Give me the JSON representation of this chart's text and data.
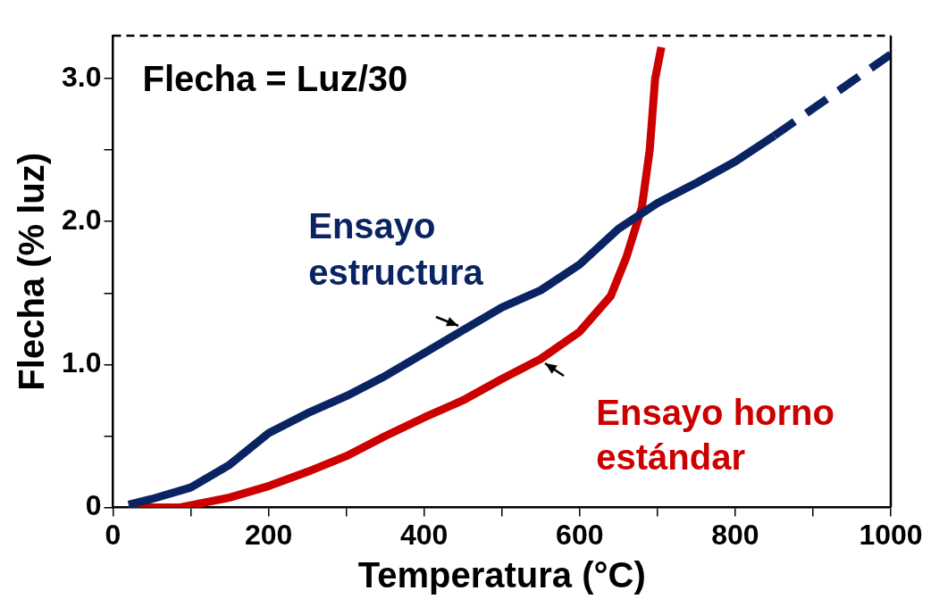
{
  "chart_data": {
    "type": "line",
    "xlabel": "Temperatura (°C)",
    "ylabel": "Flecha (% luz)",
    "xlim": [
      0,
      1000
    ],
    "xticks": [
      0,
      {
        "value": 100,
        "label": null
      },
      200,
      {
        "value": 300,
        "label": null
      },
      400,
      {
        "value": 500,
        "label": null
      },
      600,
      {
        "value": 700,
        "label": null
      },
      800,
      {
        "value": 900,
        "label": null
      },
      1000
    ],
    "ylim": [
      0,
      3.3
    ],
    "yticks": [
      0,
      {
        "value": 0.5,
        "label": null
      },
      {
        "value": 1,
        "label": "1.0"
      },
      {
        "value": 1.5,
        "label": null
      },
      {
        "value": 2,
        "label": "2.0"
      },
      {
        "value": 2.5,
        "label": null
      },
      {
        "value": 3,
        "label": "3.0"
      }
    ],
    "grid": false,
    "legend": false,
    "marker": "none",
    "line_style": "solid",
    "series": [
      {
        "name": "Ensayo estructura",
        "color": "#0a2463",
        "x": [
          20,
          50,
          100,
          150,
          200,
          250,
          300,
          350,
          400,
          450,
          500,
          550,
          600,
          650,
          700,
          750,
          800,
          850
        ],
        "values": [
          0.02,
          0.06,
          0.14,
          0.3,
          0.52,
          0.66,
          0.78,
          0.92,
          1.08,
          1.24,
          1.4,
          1.52,
          1.7,
          1.95,
          2.13,
          2.27,
          2.42,
          2.6
        ]
      },
      {
        "color": "#0a2463",
        "line_style": "dashed",
        "x": [
          850,
          1000
        ],
        "values": [
          2.6,
          3.17
        ]
      },
      {
        "name": "Ensayo horno estándar",
        "color": "#cc0000",
        "x": [
          20,
          85,
          150,
          200,
          250,
          300,
          350,
          400,
          450,
          500,
          550,
          600,
          640,
          660,
          680,
          690,
          697,
          705
        ],
        "values": [
          0,
          0,
          0.07,
          0.15,
          0.25,
          0.36,
          0.5,
          0.63,
          0.75,
          0.9,
          1.04,
          1.23,
          1.48,
          1.75,
          2.1,
          2.5,
          3.0,
          3.22
        ]
      }
    ],
    "ref_lines": [
      {
        "axis": "y",
        "value": 3.3,
        "label": "Flecha = Luz/30",
        "color": "#000000",
        "line_style": "dashed"
      }
    ]
  }
}
